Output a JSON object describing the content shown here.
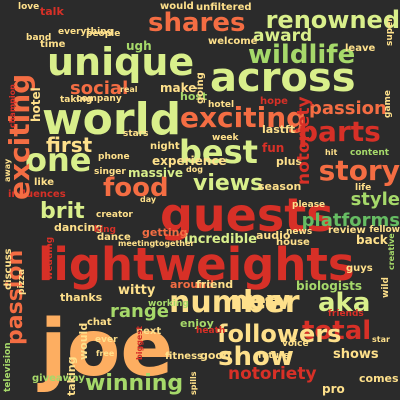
{
  "palette": {
    "red": "#d73027",
    "orange": "#f46d43",
    "peach": "#fdae61",
    "cream": "#fee08b",
    "lightgreen": "#d9ef8b",
    "green": "#a6d96a",
    "midgreen": "#66bd63",
    "darkgreen": "#1a9850",
    "background": "#2b2b2b"
  },
  "words": [
    {
      "text": "lightweights",
      "color": "red"
    },
    {
      "text": "joe",
      "color": "peach"
    },
    {
      "text": "guests",
      "color": "red"
    },
    {
      "text": "world",
      "color": "lightgreen"
    },
    {
      "text": "unique",
      "color": "lightgreen"
    },
    {
      "text": "across",
      "color": "lightgreen"
    },
    {
      "text": "wildlife",
      "color": "green"
    },
    {
      "text": "shares",
      "color": "orange"
    },
    {
      "text": "renowned",
      "color": "lightgreen"
    },
    {
      "text": "one",
      "color": "lightgreen"
    },
    {
      "text": "best",
      "color": "lightgreen"
    },
    {
      "text": "exciting",
      "color": "orange"
    },
    {
      "text": "parts",
      "color": "red"
    },
    {
      "text": "story",
      "color": "orange"
    },
    {
      "text": "food",
      "color": "orange"
    },
    {
      "text": "views",
      "color": "lightgreen"
    },
    {
      "text": "brit",
      "color": "lightgreen"
    },
    {
      "text": "number",
      "color": "cream"
    },
    {
      "text": "new",
      "color": "cream"
    },
    {
      "text": "aka",
      "color": "lightgreen"
    },
    {
      "text": "total",
      "color": "red"
    },
    {
      "text": "show",
      "color": "cream"
    },
    {
      "text": "winning",
      "color": "green"
    },
    {
      "text": "followers",
      "color": "cream"
    },
    {
      "text": "first",
      "color": "cream"
    },
    {
      "text": "social",
      "color": "orange"
    },
    {
      "text": "award",
      "color": "lightgreen"
    },
    {
      "text": "passion",
      "color": "orange"
    },
    {
      "text": "platforms",
      "color": "midgreen"
    },
    {
      "text": "range",
      "color": "green"
    },
    {
      "text": "notoriety",
      "color": "red"
    },
    {
      "text": "style",
      "color": "green"
    },
    {
      "text": "witty",
      "color": "cream"
    },
    {
      "text": "biologists",
      "color": "green"
    },
    {
      "text": "ugh",
      "color": "green"
    },
    {
      "text": "massive",
      "color": "lightgreen"
    },
    {
      "text": "experience",
      "color": "cream"
    },
    {
      "text": "incredible",
      "color": "lightgreen"
    },
    {
      "text": "around",
      "color": "orange"
    },
    {
      "text": "friend",
      "color": "cream"
    },
    {
      "text": "getting",
      "color": "orange"
    },
    {
      "text": "back",
      "color": "cream"
    },
    {
      "text": "audio",
      "color": "cream"
    },
    {
      "text": "house",
      "color": "cream"
    },
    {
      "text": "enjoy",
      "color": "green"
    },
    {
      "text": "good",
      "color": "cream"
    },
    {
      "text": "future",
      "color": "cream"
    },
    {
      "text": "pro",
      "color": "cream"
    },
    {
      "text": "comes",
      "color": "cream"
    },
    {
      "text": "shows",
      "color": "cream"
    },
    {
      "text": "review",
      "color": "cream"
    },
    {
      "text": "time",
      "color": "cream"
    },
    {
      "text": "talk",
      "color": "red"
    },
    {
      "text": "love",
      "color": "cream"
    },
    {
      "text": "welcome",
      "color": "cream"
    },
    {
      "text": "leave",
      "color": "cream"
    },
    {
      "text": "host",
      "color": "green"
    },
    {
      "text": "make",
      "color": "cream"
    },
    {
      "text": "lastft",
      "color": "cream"
    },
    {
      "text": "fun",
      "color": "red"
    },
    {
      "text": "plus",
      "color": "cream"
    },
    {
      "text": "season",
      "color": "cream"
    },
    {
      "text": "influences",
      "color": "red"
    },
    {
      "text": "like",
      "color": "cream"
    },
    {
      "text": "dancing",
      "color": "cream"
    },
    {
      "text": "dance",
      "color": "cream"
    },
    {
      "text": "stars",
      "color": "cream"
    },
    {
      "text": "week",
      "color": "cream"
    },
    {
      "text": "hope",
      "color": "red"
    },
    {
      "text": "thanks",
      "color": "cream"
    },
    {
      "text": "chat",
      "color": "cream"
    },
    {
      "text": "next",
      "color": "cream"
    },
    {
      "text": "friends",
      "color": "red"
    },
    {
      "text": "fitness",
      "color": "cream"
    },
    {
      "text": "giveaway",
      "color": "green"
    },
    {
      "text": "working",
      "color": "green"
    },
    {
      "text": "people",
      "color": "cream"
    },
    {
      "text": "everything",
      "color": "cream"
    },
    {
      "text": "company",
      "color": "cream"
    },
    {
      "text": "taking",
      "color": "cream"
    },
    {
      "text": "would",
      "color": "cream"
    },
    {
      "text": "unfiltered",
      "color": "cream"
    },
    {
      "text": "hotel",
      "color": "cream"
    },
    {
      "text": "life",
      "color": "cream"
    },
    {
      "text": "content",
      "color": "green"
    },
    {
      "text": "news",
      "color": "cream"
    },
    {
      "text": "guys",
      "color": "cream"
    },
    {
      "text": "meeting",
      "color": "cream"
    },
    {
      "text": "together",
      "color": "cream"
    },
    {
      "text": "heath",
      "color": "red"
    },
    {
      "text": "voice",
      "color": "cream"
    },
    {
      "text": "dancer",
      "color": "cream"
    },
    {
      "text": "night",
      "color": "cream"
    },
    {
      "text": "phone",
      "color": "cream"
    },
    {
      "text": "please",
      "color": "cream"
    },
    {
      "text": "creator",
      "color": "cream"
    },
    {
      "text": "day",
      "color": "cream"
    },
    {
      "text": "hit",
      "color": "cream"
    },
    {
      "text": "band",
      "color": "cream"
    },
    {
      "text": "king",
      "color": "red"
    },
    {
      "text": "singer",
      "color": "cream"
    },
    {
      "text": "dog",
      "color": "cream"
    },
    {
      "text": "star",
      "color": "cream"
    },
    {
      "text": "free",
      "color": "cream"
    },
    {
      "text": "ever",
      "color": "cream"
    },
    {
      "text": "going",
      "color": "cream"
    },
    {
      "text": "real",
      "color": "cream"
    },
    {
      "text": "fellow",
      "color": "cream"
    },
    {
      "text": "game",
      "color": "cream"
    },
    {
      "text": "super",
      "color": "cream"
    },
    {
      "text": "wild",
      "color": "cream"
    },
    {
      "text": "wedding",
      "color": "red"
    },
    {
      "text": "discuss",
      "color": "cream"
    },
    {
      "text": "pizza",
      "color": "cream"
    },
    {
      "text": "television",
      "color": "green"
    },
    {
      "text": "away",
      "color": "cream"
    },
    {
      "text": "creative",
      "color": "green"
    },
    {
      "text": "champion",
      "color": "red"
    },
    {
      "text": "spills",
      "color": "cream"
    },
    {
      "text": "biggest",
      "color": "red"
    },
    {
      "text": "visiting",
      "color": "cream"
    },
    {
      "text": "celebrity",
      "color": "cream"
    },
    {
      "text": "coming",
      "color": "cream"
    },
    {
      "text": "reality",
      "color": "cream"
    },
    {
      "text": "nature",
      "color": "cream"
    },
    {
      "text": "shark",
      "color": "cream"
    }
  ]
}
